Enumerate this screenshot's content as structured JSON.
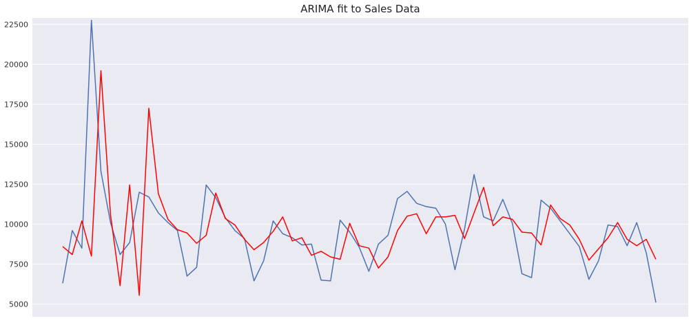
{
  "chart_data": {
    "type": "line",
    "title": "ARIMA fit to Sales Data",
    "xlabel": "",
    "ylabel": "",
    "ylim": [
      4200,
      22900
    ],
    "yticks": [
      5000,
      7500,
      10000,
      12500,
      15000,
      17500,
      20000,
      22500
    ],
    "grid": true,
    "background": "#eaeaf2",
    "grid_color": "#ffffff",
    "series": [
      {
        "color": "#4c72b0",
        "values": [
          6300,
          9600,
          8500,
          22750,
          13300,
          10100,
          8100,
          8850,
          12000,
          11700,
          10700,
          10100,
          9600,
          6750,
          7300,
          12450,
          11650,
          10400,
          9600,
          9100,
          6450,
          7700,
          10200,
          9400,
          9150,
          8700,
          8750,
          6500,
          6450,
          10250,
          9500,
          8550,
          7050,
          8750,
          9300,
          11600,
          12050,
          11300,
          11100,
          11000,
          10000,
          7150,
          9700,
          13100,
          10450,
          10200,
          11550,
          10050,
          6900,
          6650,
          11500,
          11000,
          10200,
          9400,
          8600,
          6550,
          7700,
          9950,
          9850,
          8650,
          10100,
          8200,
          5100
        ]
      },
      {
        "color": "#ff0000",
        "values": [
          8600,
          8100,
          10200,
          8000,
          19600,
          10600,
          6150,
          12450,
          5550,
          17250,
          11900,
          10300,
          9650,
          9450,
          8800,
          9300,
          11950,
          10350,
          9950,
          9050,
          8400,
          8850,
          9550,
          10450,
          8950,
          9150,
          8050,
          8300,
          7950,
          7800,
          10050,
          8650,
          8500,
          7250,
          7950,
          9600,
          10500,
          10650,
          9400,
          10450,
          10450,
          10550,
          9100,
          10700,
          12300,
          9900,
          10450,
          10300,
          9500,
          9450,
          8700,
          11200,
          10350,
          9950,
          9050,
          7750,
          8450,
          9150,
          10100,
          9050,
          8650,
          9050,
          7800
        ]
      }
    ]
  }
}
